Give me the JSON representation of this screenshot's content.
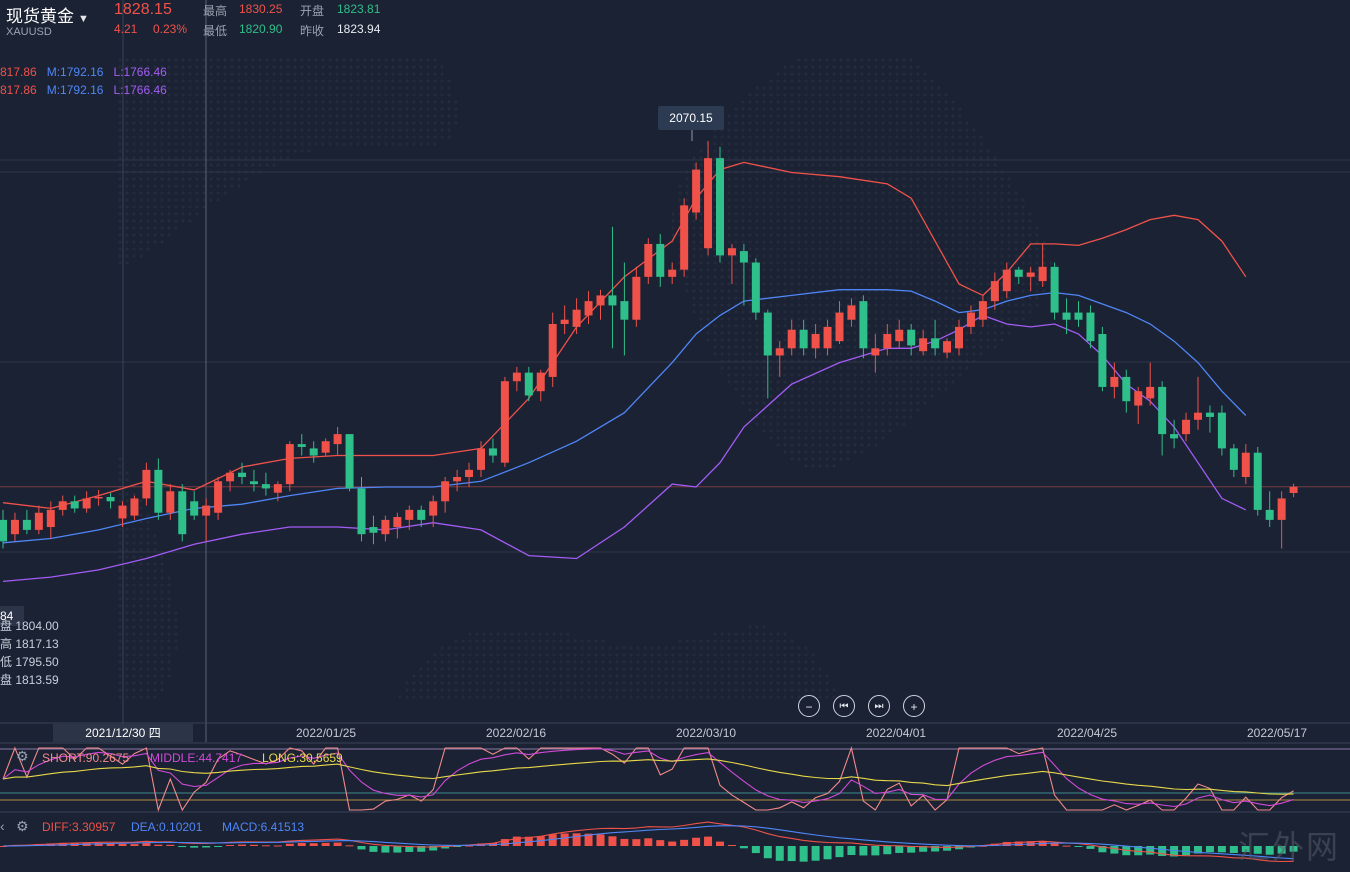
{
  "header": {
    "symbol": "现货黄金",
    "code": "XAUUSD",
    "price": "1828.15",
    "change": "4.21",
    "change_pct": "0.23%",
    "high_label": "最高",
    "high": "1830.25",
    "open_label": "开盘",
    "open": "1823.81",
    "low_label": "最低",
    "low": "1820.90",
    "prev_close_label": "昨收",
    "prev_close": "1823.94"
  },
  "boll_legend": [
    {
      "u": "817.86",
      "m": "M:1792.16",
      "l": "L:1766.46"
    },
    {
      "u": "817.86",
      "m": "M:1792.16",
      "l": "L:1766.46"
    }
  ],
  "crosshair_ohlc": {
    "last_label": "84",
    "open": "盘 1804.00",
    "high": "高 1817.13",
    "low": "低 1795.50",
    "close": "盘 1813.59"
  },
  "max_tooltip": "2070.15",
  "controls": {
    "zoom_out": "−",
    "prev": "⏮",
    "next": "⏭",
    "zoom_in": "+"
  },
  "x_axis": {
    "highlight": "2021/12/30 四",
    "labels": [
      "2022/01/25",
      "2022/02/16",
      "2022/03/10",
      "2022/04/01",
      "2022/04/25",
      "2022/05/17"
    ]
  },
  "indicators": {
    "kdj": {
      "short": "SHORT:90.2675",
      "middle": "MIDDLE:44.7417",
      "long": "LONG:30.5659"
    },
    "macd": {
      "diff": "DIFF:3.30957",
      "dea": "DEA:0.10201",
      "macd": "MACD:6.41513"
    }
  },
  "watermark": "汇外网",
  "colors": {
    "up": "#f0524a",
    "down": "#2fbf8a",
    "upper": "#f0524a",
    "middle": "#4f86f7",
    "lower": "#a35cf5",
    "bg": "#1b2233"
  },
  "chart_data": {
    "type": "candlestick",
    "title": "现货黄金 XAUUSD",
    "x_tick_labels": [
      "2022/01/25",
      "2022/02/16",
      "2022/03/10",
      "2022/04/01",
      "2022/04/25",
      "2022/05/17"
    ],
    "candles": [
      {
        "o": 1805,
        "h": 1812,
        "l": 1785,
        "c": 1790
      },
      {
        "o": 1795,
        "h": 1810,
        "l": 1790,
        "c": 1805
      },
      {
        "o": 1805,
        "h": 1812,
        "l": 1795,
        "c": 1798
      },
      {
        "o": 1798,
        "h": 1815,
        "l": 1795,
        "c": 1810
      },
      {
        "o": 1800,
        "h": 1818,
        "l": 1792,
        "c": 1812
      },
      {
        "o": 1812,
        "h": 1822,
        "l": 1808,
        "c": 1818
      },
      {
        "o": 1818,
        "h": 1822,
        "l": 1810,
        "c": 1813
      },
      {
        "o": 1813,
        "h": 1825,
        "l": 1810,
        "c": 1820
      },
      {
        "o": 1820,
        "h": 1826,
        "l": 1815,
        "c": 1821
      },
      {
        "o": 1821,
        "h": 1824,
        "l": 1813,
        "c": 1818
      },
      {
        "o": 1806,
        "h": 1818,
        "l": 1800,
        "c": 1815
      },
      {
        "o": 1808,
        "h": 1822,
        "l": 1805,
        "c": 1820
      },
      {
        "o": 1820,
        "h": 1845,
        "l": 1815,
        "c": 1840
      },
      {
        "o": 1840,
        "h": 1848,
        "l": 1805,
        "c": 1810
      },
      {
        "o": 1810,
        "h": 1830,
        "l": 1805,
        "c": 1825
      },
      {
        "o": 1825,
        "h": 1830,
        "l": 1790,
        "c": 1795
      },
      {
        "o": 1818,
        "h": 1825,
        "l": 1805,
        "c": 1808
      },
      {
        "o": 1808,
        "h": 1820,
        "l": 1790,
        "c": 1815
      },
      {
        "o": 1810,
        "h": 1835,
        "l": 1805,
        "c": 1832
      },
      {
        "o": 1832,
        "h": 1840,
        "l": 1825,
        "c": 1838
      },
      {
        "o": 1838,
        "h": 1845,
        "l": 1830,
        "c": 1835
      },
      {
        "o": 1832,
        "h": 1840,
        "l": 1825,
        "c": 1830
      },
      {
        "o": 1830,
        "h": 1838,
        "l": 1822,
        "c": 1827
      },
      {
        "o": 1824,
        "h": 1832,
        "l": 1818,
        "c": 1830
      },
      {
        "o": 1830,
        "h": 1860,
        "l": 1825,
        "c": 1858
      },
      {
        "o": 1858,
        "h": 1865,
        "l": 1850,
        "c": 1856
      },
      {
        "o": 1855,
        "h": 1860,
        "l": 1845,
        "c": 1850
      },
      {
        "o": 1852,
        "h": 1862,
        "l": 1850,
        "c": 1860
      },
      {
        "o": 1858,
        "h": 1870,
        "l": 1850,
        "c": 1865
      },
      {
        "o": 1865,
        "h": 1865,
        "l": 1825,
        "c": 1827
      },
      {
        "o": 1827,
        "h": 1835,
        "l": 1790,
        "c": 1795
      },
      {
        "o": 1800,
        "h": 1808,
        "l": 1788,
        "c": 1796
      },
      {
        "o": 1795,
        "h": 1808,
        "l": 1790,
        "c": 1805
      },
      {
        "o": 1800,
        "h": 1810,
        "l": 1792,
        "c": 1807
      },
      {
        "o": 1805,
        "h": 1815,
        "l": 1798,
        "c": 1812
      },
      {
        "o": 1812,
        "h": 1815,
        "l": 1800,
        "c": 1805
      },
      {
        "o": 1808,
        "h": 1822,
        "l": 1800,
        "c": 1818
      },
      {
        "o": 1818,
        "h": 1835,
        "l": 1810,
        "c": 1832
      },
      {
        "o": 1832,
        "h": 1840,
        "l": 1825,
        "c": 1835
      },
      {
        "o": 1835,
        "h": 1845,
        "l": 1828,
        "c": 1840
      },
      {
        "o": 1840,
        "h": 1860,
        "l": 1835,
        "c": 1855
      },
      {
        "o": 1855,
        "h": 1862,
        "l": 1845,
        "c": 1850
      },
      {
        "o": 1845,
        "h": 1905,
        "l": 1842,
        "c": 1902
      },
      {
        "o": 1902,
        "h": 1912,
        "l": 1895,
        "c": 1908
      },
      {
        "o": 1908,
        "h": 1912,
        "l": 1888,
        "c": 1892
      },
      {
        "o": 1895,
        "h": 1910,
        "l": 1888,
        "c": 1908
      },
      {
        "o": 1905,
        "h": 1950,
        "l": 1898,
        "c": 1942
      },
      {
        "o": 1942,
        "h": 1955,
        "l": 1935,
        "c": 1945
      },
      {
        "o": 1940,
        "h": 1960,
        "l": 1935,
        "c": 1952
      },
      {
        "o": 1948,
        "h": 1965,
        "l": 1942,
        "c": 1958
      },
      {
        "o": 1955,
        "h": 1966,
        "l": 1945,
        "c": 1962
      },
      {
        "o": 1962,
        "h": 2010,
        "l": 1925,
        "c": 1955
      },
      {
        "o": 1958,
        "h": 1985,
        "l": 1920,
        "c": 1945
      },
      {
        "o": 1945,
        "h": 1982,
        "l": 1940,
        "c": 1975
      },
      {
        "o": 1975,
        "h": 2002,
        "l": 1970,
        "c": 1998
      },
      {
        "o": 1998,
        "h": 2005,
        "l": 1968,
        "c": 1975
      },
      {
        "o": 1975,
        "h": 1985,
        "l": 1970,
        "c": 1980
      },
      {
        "o": 1980,
        "h": 2030,
        "l": 1975,
        "c": 2025
      },
      {
        "o": 2020,
        "h": 2055,
        "l": 2015,
        "c": 2050
      },
      {
        "o": 1995,
        "h": 2070,
        "l": 1990,
        "c": 2058
      },
      {
        "o": 2058,
        "h": 2066,
        "l": 1985,
        "c": 1990
      },
      {
        "o": 1990,
        "h": 1998,
        "l": 1970,
        "c": 1995
      },
      {
        "o": 1993,
        "h": 1998,
        "l": 1955,
        "c": 1985
      },
      {
        "o": 1985,
        "h": 1988,
        "l": 1945,
        "c": 1950
      },
      {
        "o": 1950,
        "h": 1952,
        "l": 1890,
        "c": 1920
      },
      {
        "o": 1920,
        "h": 1930,
        "l": 1905,
        "c": 1925
      },
      {
        "o": 1925,
        "h": 1945,
        "l": 1920,
        "c": 1938
      },
      {
        "o": 1938,
        "h": 1945,
        "l": 1920,
        "c": 1925
      },
      {
        "o": 1925,
        "h": 1942,
        "l": 1918,
        "c": 1935
      },
      {
        "o": 1925,
        "h": 1945,
        "l": 1920,
        "c": 1940
      },
      {
        "o": 1930,
        "h": 1958,
        "l": 1928,
        "c": 1950
      },
      {
        "o": 1945,
        "h": 1960,
        "l": 1940,
        "c": 1955
      },
      {
        "o": 1958,
        "h": 1962,
        "l": 1918,
        "c": 1925
      },
      {
        "o": 1920,
        "h": 1935,
        "l": 1908,
        "c": 1925
      },
      {
        "o": 1925,
        "h": 1942,
        "l": 1920,
        "c": 1935
      },
      {
        "o": 1930,
        "h": 1945,
        "l": 1925,
        "c": 1938
      },
      {
        "o": 1938,
        "h": 1942,
        "l": 1920,
        "c": 1927
      },
      {
        "o": 1923,
        "h": 1938,
        "l": 1920,
        "c": 1932
      },
      {
        "o": 1932,
        "h": 1945,
        "l": 1920,
        "c": 1925
      },
      {
        "o": 1922,
        "h": 1932,
        "l": 1918,
        "c": 1930
      },
      {
        "o": 1925,
        "h": 1945,
        "l": 1920,
        "c": 1940
      },
      {
        "o": 1940,
        "h": 1955,
        "l": 1935,
        "c": 1950
      },
      {
        "o": 1945,
        "h": 1962,
        "l": 1940,
        "c": 1958
      },
      {
        "o": 1958,
        "h": 1978,
        "l": 1952,
        "c": 1972
      },
      {
        "o": 1965,
        "h": 1985,
        "l": 1960,
        "c": 1980
      },
      {
        "o": 1980,
        "h": 1982,
        "l": 1970,
        "c": 1975
      },
      {
        "o": 1975,
        "h": 1982,
        "l": 1965,
        "c": 1978
      },
      {
        "o": 1972,
        "h": 1998,
        "l": 1968,
        "c": 1982
      },
      {
        "o": 1982,
        "h": 1985,
        "l": 1945,
        "c": 1950
      },
      {
        "o": 1950,
        "h": 1960,
        "l": 1935,
        "c": 1945
      },
      {
        "o": 1950,
        "h": 1958,
        "l": 1940,
        "c": 1945
      },
      {
        "o": 1950,
        "h": 1955,
        "l": 1925,
        "c": 1930
      },
      {
        "o": 1935,
        "h": 1940,
        "l": 1895,
        "c": 1898
      },
      {
        "o": 1898,
        "h": 1915,
        "l": 1890,
        "c": 1905
      },
      {
        "o": 1905,
        "h": 1910,
        "l": 1880,
        "c": 1888
      },
      {
        "o": 1885,
        "h": 1898,
        "l": 1872,
        "c": 1895
      },
      {
        "o": 1890,
        "h": 1915,
        "l": 1885,
        "c": 1898
      },
      {
        "o": 1898,
        "h": 1902,
        "l": 1850,
        "c": 1865
      },
      {
        "o": 1865,
        "h": 1875,
        "l": 1855,
        "c": 1862
      },
      {
        "o": 1865,
        "h": 1880,
        "l": 1860,
        "c": 1875
      },
      {
        "o": 1875,
        "h": 1905,
        "l": 1868,
        "c": 1880
      },
      {
        "o": 1880,
        "h": 1885,
        "l": 1866,
        "c": 1877
      },
      {
        "o": 1880,
        "h": 1885,
        "l": 1850,
        "c": 1855
      },
      {
        "o": 1855,
        "h": 1858,
        "l": 1835,
        "c": 1840
      },
      {
        "o": 1835,
        "h": 1858,
        "l": 1830,
        "c": 1852
      },
      {
        "o": 1852,
        "h": 1856,
        "l": 1808,
        "c": 1812
      },
      {
        "o": 1812,
        "h": 1825,
        "l": 1800,
        "c": 1805
      },
      {
        "o": 1805,
        "h": 1825,
        "l": 1785,
        "c": 1820
      },
      {
        "o": 1823.81,
        "h": 1830.25,
        "l": 1820.9,
        "c": 1828.15
      }
    ],
    "bollinger": {
      "upper": [
        [
          0,
          1817
        ],
        [
          4,
          1813
        ],
        [
          8,
          1822
        ],
        [
          12,
          1832
        ],
        [
          16,
          1826
        ],
        [
          20,
          1842
        ],
        [
          24,
          1848
        ],
        [
          28,
          1850
        ],
        [
          32,
          1850
        ],
        [
          36,
          1850
        ],
        [
          40,
          1855
        ],
        [
          44,
          1890
        ],
        [
          48,
          1940
        ],
        [
          52,
          1975
        ],
        [
          56,
          2000
        ],
        [
          58,
          2030
        ],
        [
          60,
          2050
        ],
        [
          62,
          2055
        ],
        [
          66,
          2048
        ],
        [
          70,
          2045
        ],
        [
          74,
          2040
        ],
        [
          76,
          2030
        ],
        [
          78,
          2000
        ],
        [
          80,
          1970
        ],
        [
          82,
          1962
        ],
        [
          84,
          1978
        ],
        [
          86,
          1998
        ],
        [
          88,
          1998
        ],
        [
          90,
          1997
        ],
        [
          92,
          2002
        ],
        [
          94,
          2008
        ],
        [
          96,
          2015
        ],
        [
          98,
          2018
        ],
        [
          100,
          2015
        ],
        [
          102,
          2000
        ],
        [
          104,
          1975
        ]
      ],
      "middle": [
        [
          0,
          1789
        ],
        [
          4,
          1792
        ],
        [
          8,
          1798
        ],
        [
          12,
          1806
        ],
        [
          16,
          1813
        ],
        [
          20,
          1816
        ],
        [
          24,
          1822
        ],
        [
          28,
          1827
        ],
        [
          32,
          1828
        ],
        [
          36,
          1828
        ],
        [
          40,
          1832
        ],
        [
          44,
          1845
        ],
        [
          48,
          1860
        ],
        [
          52,
          1880
        ],
        [
          56,
          1915
        ],
        [
          58,
          1935
        ],
        [
          60,
          1948
        ],
        [
          62,
          1958
        ],
        [
          66,
          1962
        ],
        [
          70,
          1966
        ],
        [
          74,
          1966
        ],
        [
          76,
          1965
        ],
        [
          78,
          1958
        ],
        [
          80,
          1950
        ],
        [
          82,
          1952
        ],
        [
          84,
          1958
        ],
        [
          86,
          1962
        ],
        [
          88,
          1964
        ],
        [
          90,
          1962
        ],
        [
          92,
          1956
        ],
        [
          94,
          1950
        ],
        [
          96,
          1942
        ],
        [
          98,
          1930
        ],
        [
          100,
          1915
        ],
        [
          102,
          1895
        ],
        [
          104,
          1878
        ]
      ],
      "lower": [
        [
          0,
          1762
        ],
        [
          4,
          1765
        ],
        [
          8,
          1770
        ],
        [
          12,
          1778
        ],
        [
          16,
          1788
        ],
        [
          20,
          1795
        ],
        [
          24,
          1800
        ],
        [
          28,
          1800
        ],
        [
          32,
          1798
        ],
        [
          36,
          1803
        ],
        [
          40,
          1798
        ],
        [
          44,
          1780
        ],
        [
          48,
          1778
        ],
        [
          52,
          1800
        ],
        [
          56,
          1830
        ],
        [
          58,
          1828
        ],
        [
          60,
          1845
        ],
        [
          62,
          1870
        ],
        [
          66,
          1900
        ],
        [
          70,
          1915
        ],
        [
          74,
          1925
        ],
        [
          76,
          1925
        ],
        [
          78,
          1930
        ],
        [
          80,
          1938
        ],
        [
          82,
          1948
        ],
        [
          84,
          1942
        ],
        [
          86,
          1940
        ],
        [
          88,
          1942
        ],
        [
          90,
          1935
        ],
        [
          92,
          1920
        ],
        [
          94,
          1900
        ],
        [
          96,
          1888
        ],
        [
          98,
          1870
        ],
        [
          100,
          1845
        ],
        [
          102,
          1820
        ],
        [
          104,
          1812
        ]
      ]
    }
  }
}
